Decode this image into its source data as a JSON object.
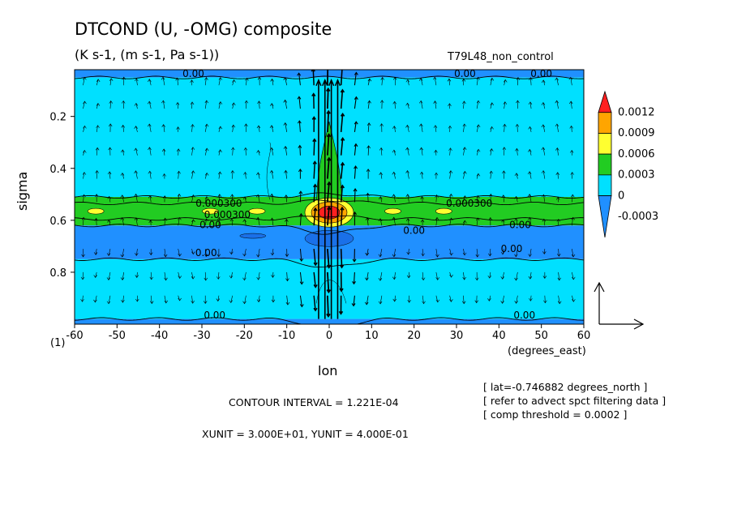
{
  "chart_data": {
    "type": "heatmap",
    "title": "DTCOND (U, -OMG) composite",
    "subtitle": "(K s-1, (m s-1, Pa s-1))",
    "run_label": "T79L48_non_control",
    "xlabel": "lon",
    "xlabel_units": "(degrees_east)",
    "ylabel": "sigma",
    "xlim": [
      -60,
      60
    ],
    "ylim": [
      1.0,
      0.02
    ],
    "x_ticks": [
      -60,
      -50,
      -40,
      -30,
      -20,
      -10,
      0,
      10,
      20,
      30,
      40,
      50,
      60
    ],
    "y_ticks": [
      0.2,
      0.4,
      0.6,
      0.8
    ],
    "corner_label": "(1)",
    "legend": {
      "levels": [
        "0.0012",
        "0.0009",
        "0.0006",
        "0.0003",
        "0",
        "-0.0003"
      ],
      "colors": [
        "#ff2020",
        "#ffa500",
        "#ffff30",
        "#22cc22",
        "#00e0ff",
        "#2090ff"
      ]
    },
    "contour_labels": [
      "0.00",
      "0.00",
      "0.000300",
      "0.000300",
      "0.00",
      "0.00",
      "0.000300",
      "0.00",
      "0.00",
      "0.00",
      "0.00",
      "0.00",
      "0.00"
    ],
    "bands": [
      {
        "sigma_top": 0.02,
        "sigma_bottom": 0.05,
        "value": "-0.0003"
      },
      {
        "sigma_top": 0.05,
        "sigma_bottom": 0.51,
        "value": "0"
      },
      {
        "sigma_top": 0.51,
        "sigma_bottom": 0.62,
        "value": "0.0003"
      },
      {
        "sigma_top": 0.62,
        "sigma_bottom": 0.75,
        "value": "-0.0003"
      },
      {
        "sigma_top": 0.75,
        "sigma_bottom": 0.98,
        "value": "0"
      },
      {
        "sigma_top": 0.98,
        "sigma_bottom": 1.0,
        "value": "-0.0003"
      }
    ],
    "peak": {
      "lon": 0,
      "sigma": 0.57,
      "value": "0.0012"
    }
  },
  "footer": {
    "contour_interval": "CONTOUR INTERVAL = 1.221E-04",
    "units": "XUNIT = 3.000E+01, YUNIT = 4.000E-01"
  },
  "notes": [
    "[ lat=-0.746882 degrees_north ]",
    "[ refer to advect spct filtering data ]",
    "[ comp threshold = 0.0002 ]"
  ]
}
